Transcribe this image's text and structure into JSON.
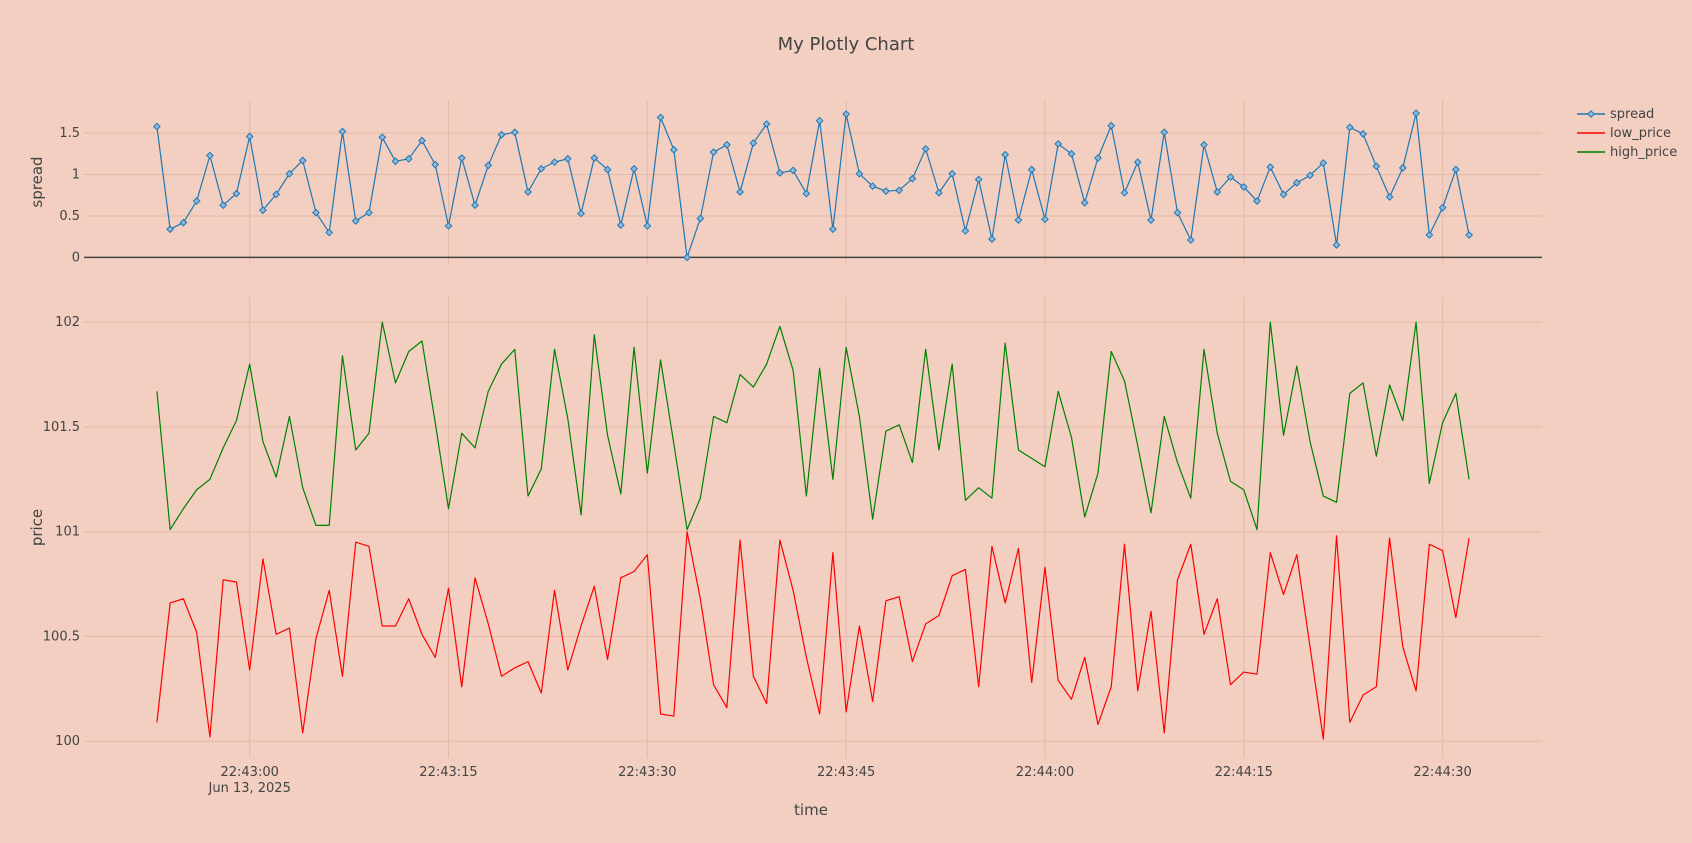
{
  "chart_data": {
    "type": "line",
    "title": "My Plotly Chart",
    "xlabel": "time",
    "x_start": "2025-06-13 22:42:53",
    "x_step_seconds": 1,
    "x_tick_labels": [
      "22:43:00",
      "22:43:15",
      "22:43:30",
      "22:43:45",
      "22:44:00",
      "22:44:15",
      "22:44:30"
    ],
    "x_tick_sublabel": "Jun 13, 2025",
    "x_tick_seconds_offset": [
      7,
      22,
      37,
      52,
      67,
      82,
      97
    ],
    "xlim_seconds_offset": [
      -5.5,
      104.5
    ],
    "legend_position": "top-right",
    "grid": true,
    "panels": [
      {
        "ylabel": "spread",
        "ylim": [
          -0.08,
          1.9
        ],
        "y_ticks": [
          0,
          0.5,
          1,
          1.5
        ],
        "y_tick_labels": [
          "0",
          "0.5",
          "1",
          "1.5"
        ],
        "zeroline": true,
        "series": [
          "spread"
        ]
      },
      {
        "ylabel": "price",
        "ylim": [
          99.92,
          102.12
        ],
        "y_ticks": [
          100,
          100.5,
          101,
          101.5,
          102
        ],
        "y_tick_labels": [
          "100",
          "100.5",
          "101",
          "101.5",
          "102"
        ],
        "zeroline": false,
        "series": [
          "low_price",
          "high_price"
        ]
      }
    ],
    "series": [
      {
        "name": "spread",
        "color": "#1f77b4",
        "markers": true,
        "values": [
          1.58,
          0.34,
          0.42,
          0.68,
          1.23,
          0.63,
          0.77,
          1.46,
          0.57,
          0.76,
          1.01,
          1.17,
          0.54,
          0.3,
          1.52,
          0.44,
          0.54,
          1.45,
          1.16,
          1.19,
          1.41,
          1.12,
          0.38,
          1.2,
          0.63,
          1.11,
          1.48,
          1.51,
          0.79,
          1.07,
          1.15,
          1.19,
          0.53,
          1.2,
          1.06,
          0.39,
          1.07,
          0.38,
          1.69,
          1.3,
          0.0,
          0.47,
          1.27,
          1.36,
          0.79,
          1.38,
          1.61,
          1.02,
          1.05,
          0.77,
          1.65,
          0.34,
          1.73,
          1.01,
          0.86,
          0.8,
          0.81,
          0.95,
          1.31,
          0.78,
          1.01,
          0.32,
          0.94,
          0.22,
          1.24,
          0.45,
          1.06,
          0.46,
          1.37,
          1.25,
          0.66,
          1.2,
          1.59,
          0.78,
          1.15,
          0.45,
          1.51,
          0.54,
          0.21,
          1.36,
          0.79,
          0.97,
          0.85,
          0.68,
          1.09,
          0.76,
          0.9,
          0.99,
          1.14,
          0.15,
          1.57,
          1.49,
          1.1,
          0.73,
          1.08,
          1.74,
          0.27,
          0.6,
          1.06,
          0.27
        ]
      },
      {
        "name": "low_price",
        "color": "#ff0000",
        "markers": false,
        "values": [
          100.09,
          100.66,
          100.68,
          100.52,
          100.02,
          100.77,
          100.76,
          100.34,
          100.87,
          100.51,
          100.54,
          100.04,
          100.49,
          100.72,
          100.31,
          100.95,
          100.93,
          100.55,
          100.55,
          100.68,
          100.51,
          100.4,
          100.73,
          100.26,
          100.78,
          100.56,
          100.31,
          100.35,
          100.38,
          100.23,
          100.72,
          100.34,
          100.55,
          100.74,
          100.39,
          100.78,
          100.81,
          100.89,
          100.13,
          100.12,
          101.0,
          100.68,
          100.27,
          100.16,
          100.96,
          100.31,
          100.18,
          100.96,
          100.72,
          100.4,
          100.13,
          100.9,
          100.14,
          100.55,
          100.19,
          100.67,
          100.69,
          100.38,
          100.56,
          100.6,
          100.79,
          100.82,
          100.26,
          100.93,
          100.66,
          100.92,
          100.28,
          100.83,
          100.29,
          100.2,
          100.4,
          100.08,
          100.26,
          100.94,
          100.24,
          100.62,
          100.04,
          100.77,
          100.94,
          100.51,
          100.68,
          100.27,
          100.33,
          100.32,
          100.9,
          100.7,
          100.89,
          100.45,
          100.01,
          100.98,
          100.09,
          100.22,
          100.26,
          100.97,
          100.45,
          100.24,
          100.94,
          100.91,
          100.59,
          100.97
        ]
      },
      {
        "name": "high_price",
        "color": "#008000",
        "markers": false,
        "values": [
          101.67,
          101.01,
          101.11,
          101.2,
          101.25,
          101.4,
          101.53,
          101.8,
          101.43,
          101.26,
          101.55,
          101.21,
          101.03,
          101.03,
          101.84,
          101.39,
          101.47,
          102.0,
          101.71,
          101.86,
          101.91,
          101.52,
          101.11,
          101.47,
          101.4,
          101.67,
          101.8,
          101.87,
          101.17,
          101.3,
          101.87,
          101.54,
          101.08,
          101.94,
          101.46,
          101.18,
          101.88,
          101.28,
          101.82,
          101.42,
          101.01,
          101.16,
          101.55,
          101.52,
          101.75,
          101.69,
          101.8,
          101.98,
          101.77,
          101.17,
          101.78,
          101.25,
          101.88,
          101.55,
          101.06,
          101.48,
          101.51,
          101.33,
          101.87,
          101.39,
          101.8,
          101.15,
          101.21,
          101.16,
          101.9,
          101.39,
          101.35,
          101.31,
          101.67,
          101.45,
          101.07,
          101.28,
          101.86,
          101.72,
          101.41,
          101.09,
          101.55,
          101.33,
          101.16,
          101.87,
          101.47,
          101.24,
          101.2,
          101.01,
          102.0,
          101.46,
          101.79,
          101.43,
          101.17,
          101.14,
          101.66,
          101.71,
          101.36,
          101.7,
          101.53,
          102.0,
          101.23,
          101.52,
          101.66,
          101.25
        ]
      }
    ]
  }
}
